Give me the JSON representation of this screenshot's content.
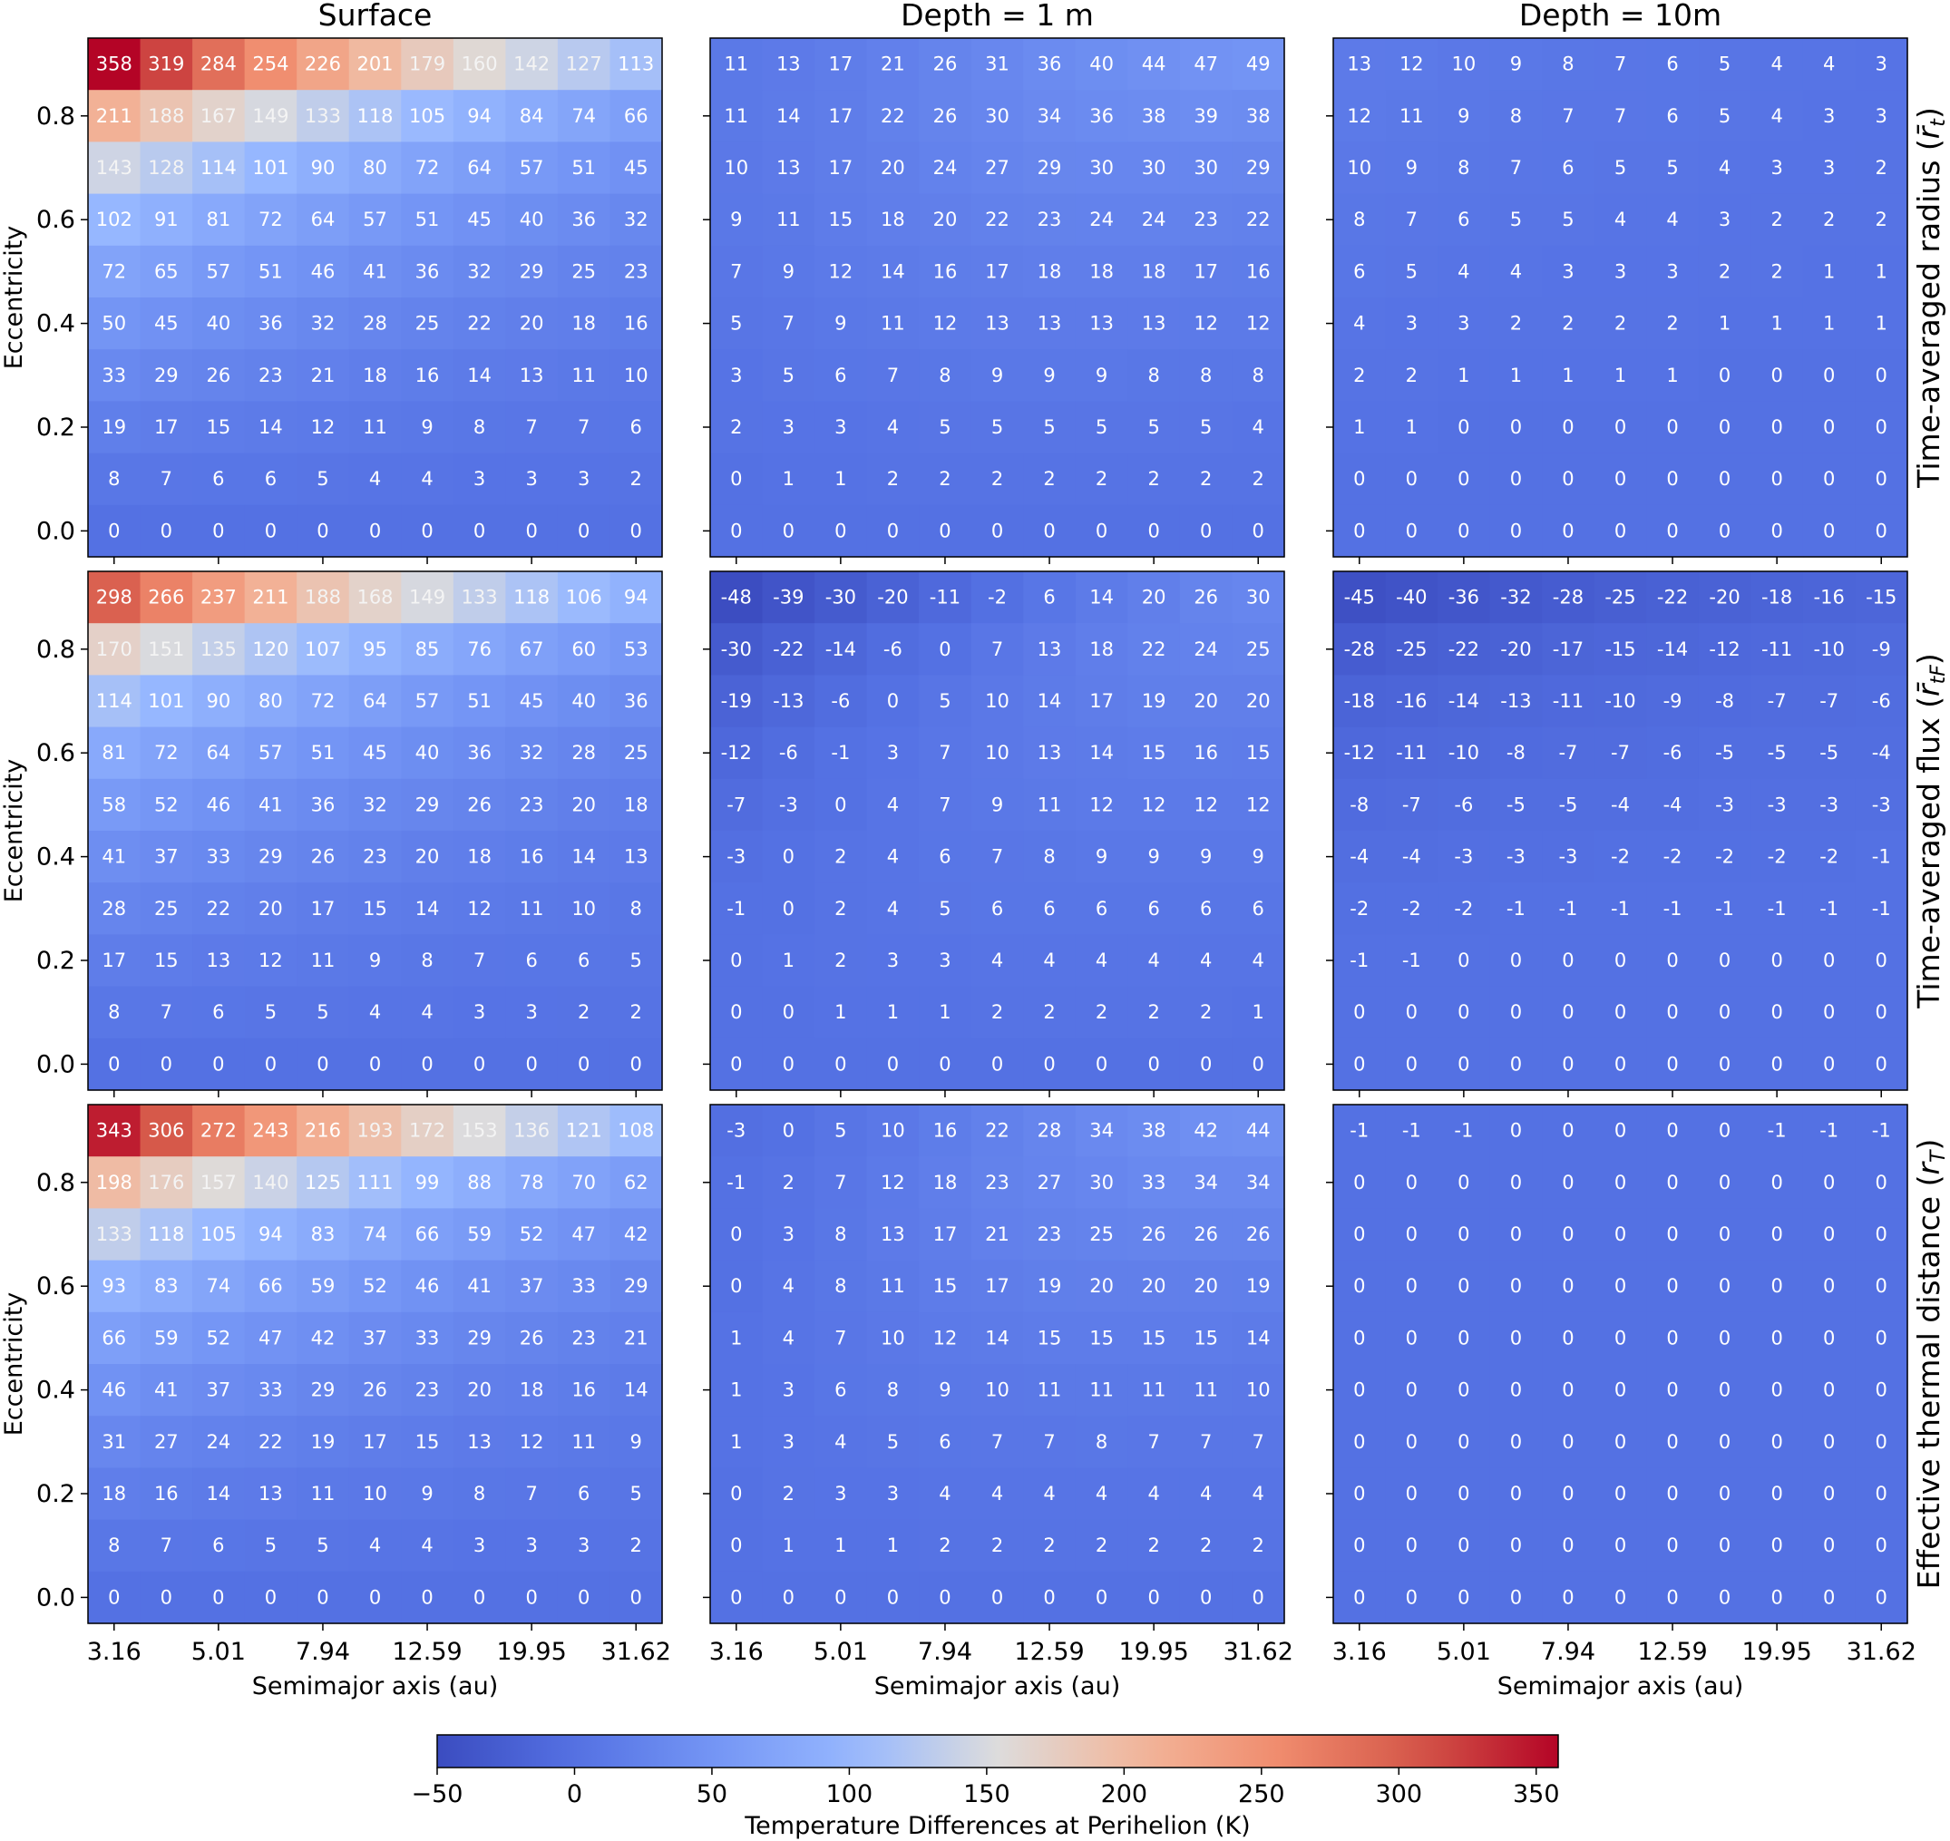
{
  "chart_data": {
    "type": "heatmap",
    "column_titles": [
      "Surface",
      "Depth = 1 m",
      "Depth = 10m"
    ],
    "row_labels": [
      {
        "text": "Time-averaged radius (",
        "sym": "r̄",
        "sub": "t",
        "close": ")"
      },
      {
        "text": "Time-averaged flux (",
        "sym": "r̄",
        "sub": "tF",
        "close": ")"
      },
      {
        "text": "Effective thermal distance (",
        "sym": "r",
        "sub": "T",
        "close": ")"
      }
    ],
    "xlabel": "Semimajor axis (au)",
    "ylabel": "Eccentricity",
    "x_tick_labels": [
      "3.16",
      "5.01",
      "7.94",
      "12.59",
      "19.95",
      "31.62"
    ],
    "y_tick_labels": [
      "0.0",
      "0.2",
      "0.4",
      "0.6",
      "0.8"
    ],
    "colorbar": {
      "label": "Temperature Differences at Perihelion (K)",
      "min": -50,
      "max": 358,
      "ticks": [
        "-50",
        "0",
        "50",
        "100",
        "150",
        "200",
        "250",
        "300",
        "350"
      ],
      "colormap": "coolwarm"
    },
    "panels": [
      [
        [
          [
            358,
            319,
            284,
            254,
            226,
            201,
            179,
            160,
            142,
            127,
            113
          ],
          [
            211,
            188,
            167,
            149,
            133,
            118,
            105,
            94,
            84,
            74,
            66
          ],
          [
            143,
            128,
            114,
            101,
            90,
            80,
            72,
            64,
            57,
            51,
            45
          ],
          [
            102,
            91,
            81,
            72,
            64,
            57,
            51,
            45,
            40,
            36,
            32
          ],
          [
            72,
            65,
            57,
            51,
            46,
            41,
            36,
            32,
            29,
            25,
            23
          ],
          [
            50,
            45,
            40,
            36,
            32,
            28,
            25,
            22,
            20,
            18,
            16
          ],
          [
            33,
            29,
            26,
            23,
            21,
            18,
            16,
            14,
            13,
            11,
            10
          ],
          [
            19,
            17,
            15,
            14,
            12,
            11,
            9,
            8,
            7,
            7,
            6
          ],
          [
            8,
            7,
            6,
            6,
            5,
            4,
            4,
            3,
            3,
            3,
            2
          ],
          [
            0,
            0,
            0,
            0,
            0,
            0,
            0,
            0,
            0,
            0,
            0
          ]
        ],
        [
          [
            11,
            13,
            17,
            21,
            26,
            31,
            36,
            40,
            44,
            47,
            49
          ],
          [
            11,
            14,
            17,
            22,
            26,
            30,
            34,
            36,
            38,
            39,
            38
          ],
          [
            10,
            13,
            17,
            20,
            24,
            27,
            29,
            30,
            30,
            30,
            29
          ],
          [
            9,
            11,
            15,
            18,
            20,
            22,
            23,
            24,
            24,
            23,
            22
          ],
          [
            7,
            9,
            12,
            14,
            16,
            17,
            18,
            18,
            18,
            17,
            16
          ],
          [
            5,
            7,
            9,
            11,
            12,
            13,
            13,
            13,
            13,
            12,
            12
          ],
          [
            3,
            5,
            6,
            7,
            8,
            9,
            9,
            9,
            8,
            8,
            8
          ],
          [
            2,
            3,
            3,
            4,
            5,
            5,
            5,
            5,
            5,
            5,
            4
          ],
          [
            0,
            1,
            1,
            2,
            2,
            2,
            2,
            2,
            2,
            2,
            2
          ],
          [
            0,
            0,
            0,
            0,
            0,
            0,
            0,
            0,
            0,
            0,
            0
          ]
        ],
        [
          [
            13,
            12,
            10,
            9,
            8,
            7,
            6,
            5,
            4,
            4,
            3
          ],
          [
            12,
            11,
            9,
            8,
            7,
            7,
            6,
            5,
            4,
            3,
            3
          ],
          [
            10,
            9,
            8,
            7,
            6,
            5,
            5,
            4,
            3,
            3,
            2
          ],
          [
            8,
            7,
            6,
            5,
            5,
            4,
            4,
            3,
            2,
            2,
            2
          ],
          [
            6,
            5,
            4,
            4,
            3,
            3,
            3,
            2,
            2,
            1,
            1
          ],
          [
            4,
            3,
            3,
            2,
            2,
            2,
            2,
            1,
            1,
            1,
            1
          ],
          [
            2,
            2,
            1,
            1,
            1,
            1,
            1,
            0,
            0,
            0,
            0
          ],
          [
            1,
            1,
            0,
            0,
            0,
            0,
            0,
            0,
            0,
            0,
            0
          ],
          [
            0,
            0,
            0,
            0,
            0,
            0,
            0,
            0,
            0,
            0,
            0
          ],
          [
            0,
            0,
            0,
            0,
            0,
            0,
            0,
            0,
            0,
            0,
            0
          ]
        ]
      ],
      [
        [
          [
            298,
            266,
            237,
            211,
            188,
            168,
            149,
            133,
            118,
            106,
            94
          ],
          [
            170,
            151,
            135,
            120,
            107,
            95,
            85,
            76,
            67,
            60,
            53
          ],
          [
            114,
            101,
            90,
            80,
            72,
            64,
            57,
            51,
            45,
            40,
            36
          ],
          [
            81,
            72,
            64,
            57,
            51,
            45,
            40,
            36,
            32,
            28,
            25
          ],
          [
            58,
            52,
            46,
            41,
            36,
            32,
            29,
            26,
            23,
            20,
            18
          ],
          [
            41,
            37,
            33,
            29,
            26,
            23,
            20,
            18,
            16,
            14,
            13
          ],
          [
            28,
            25,
            22,
            20,
            17,
            15,
            14,
            12,
            11,
            10,
            8
          ],
          [
            17,
            15,
            13,
            12,
            11,
            9,
            8,
            7,
            6,
            6,
            5
          ],
          [
            8,
            7,
            6,
            5,
            5,
            4,
            4,
            3,
            3,
            2,
            2
          ],
          [
            0,
            0,
            0,
            0,
            0,
            0,
            0,
            0,
            0,
            0,
            0
          ]
        ],
        [
          [
            -48,
            -39,
            -30,
            -20,
            -11,
            -2,
            6,
            14,
            20,
            26,
            30
          ],
          [
            -30,
            -22,
            -14,
            -6,
            0,
            7,
            13,
            18,
            22,
            24,
            25
          ],
          [
            -19,
            -13,
            -6,
            0,
            5,
            10,
            14,
            17,
            19,
            20,
            20
          ],
          [
            -12,
            -6,
            -1,
            3,
            7,
            10,
            13,
            14,
            15,
            16,
            15
          ],
          [
            -7,
            -3,
            0,
            4,
            7,
            9,
            11,
            12,
            12,
            12,
            12
          ],
          [
            -3,
            0,
            2,
            4,
            6,
            7,
            8,
            9,
            9,
            9,
            9
          ],
          [
            -1,
            0,
            2,
            4,
            5,
            6,
            6,
            6,
            6,
            6,
            6
          ],
          [
            0,
            1,
            2,
            3,
            3,
            4,
            4,
            4,
            4,
            4,
            4
          ],
          [
            0,
            0,
            1,
            1,
            1,
            2,
            2,
            2,
            2,
            2,
            1
          ],
          [
            0,
            0,
            0,
            0,
            0,
            0,
            0,
            0,
            0,
            0,
            0
          ]
        ],
        [
          [
            -45,
            -40,
            -36,
            -32,
            -28,
            -25,
            -22,
            -20,
            -18,
            -16,
            -15
          ],
          [
            -28,
            -25,
            -22,
            -20,
            -17,
            -15,
            -14,
            -12,
            -11,
            -10,
            -9
          ],
          [
            -18,
            -16,
            -14,
            -13,
            -11,
            -10,
            -9,
            -8,
            -7,
            -7,
            -6
          ],
          [
            -12,
            -11,
            -10,
            -8,
            -7,
            -7,
            -6,
            -5,
            -5,
            -5,
            -4
          ],
          [
            -8,
            -7,
            -6,
            -5,
            -5,
            -4,
            -4,
            -3,
            -3,
            -3,
            -3
          ],
          [
            -4,
            -4,
            -3,
            -3,
            -3,
            -2,
            -2,
            -2,
            -2,
            -2,
            -1
          ],
          [
            -2,
            -2,
            -2,
            -1,
            -1,
            -1,
            -1,
            -1,
            -1,
            -1,
            -1
          ],
          [
            -1,
            -1,
            0,
            0,
            0,
            0,
            0,
            0,
            0,
            0,
            0
          ],
          [
            0,
            0,
            0,
            0,
            0,
            0,
            0,
            0,
            0,
            0,
            0
          ],
          [
            0,
            0,
            0,
            0,
            0,
            0,
            0,
            0,
            0,
            0,
            0
          ]
        ]
      ],
      [
        [
          [
            343,
            306,
            272,
            243,
            216,
            193,
            172,
            153,
            136,
            121,
            108
          ],
          [
            198,
            176,
            157,
            140,
            125,
            111,
            99,
            88,
            78,
            70,
            62
          ],
          [
            133,
            118,
            105,
            94,
            83,
            74,
            66,
            59,
            52,
            47,
            42
          ],
          [
            93,
            83,
            74,
            66,
            59,
            52,
            46,
            41,
            37,
            33,
            29
          ],
          [
            66,
            59,
            52,
            47,
            42,
            37,
            33,
            29,
            26,
            23,
            21
          ],
          [
            46,
            41,
            37,
            33,
            29,
            26,
            23,
            20,
            18,
            16,
            14
          ],
          [
            31,
            27,
            24,
            22,
            19,
            17,
            15,
            13,
            12,
            11,
            9
          ],
          [
            18,
            16,
            14,
            13,
            11,
            10,
            9,
            8,
            7,
            6,
            5
          ],
          [
            8,
            7,
            6,
            5,
            5,
            4,
            4,
            3,
            3,
            3,
            2
          ],
          [
            0,
            0,
            0,
            0,
            0,
            0,
            0,
            0,
            0,
            0,
            0
          ]
        ],
        [
          [
            -3,
            0,
            5,
            10,
            16,
            22,
            28,
            34,
            38,
            42,
            44
          ],
          [
            -1,
            2,
            7,
            12,
            18,
            23,
            27,
            30,
            33,
            34,
            34
          ],
          [
            0,
            3,
            8,
            13,
            17,
            21,
            23,
            25,
            26,
            26,
            26
          ],
          [
            0,
            4,
            8,
            11,
            15,
            17,
            19,
            20,
            20,
            20,
            19
          ],
          [
            1,
            4,
            7,
            10,
            12,
            14,
            15,
            15,
            15,
            15,
            14
          ],
          [
            1,
            3,
            6,
            8,
            9,
            10,
            11,
            11,
            11,
            11,
            10
          ],
          [
            1,
            3,
            4,
            5,
            6,
            7,
            7,
            8,
            7,
            7,
            7
          ],
          [
            0,
            2,
            3,
            3,
            4,
            4,
            4,
            4,
            4,
            4,
            4
          ],
          [
            0,
            1,
            1,
            1,
            2,
            2,
            2,
            2,
            2,
            2,
            2
          ],
          [
            0,
            0,
            0,
            0,
            0,
            0,
            0,
            0,
            0,
            0,
            0
          ]
        ],
        [
          [
            -1,
            -1,
            -1,
            0,
            0,
            0,
            0,
            0,
            -1,
            -1,
            -1
          ],
          [
            0,
            0,
            0,
            0,
            0,
            0,
            0,
            0,
            0,
            0,
            0
          ],
          [
            0,
            0,
            0,
            0,
            0,
            0,
            0,
            0,
            0,
            0,
            0
          ],
          [
            0,
            0,
            0,
            0,
            0,
            0,
            0,
            0,
            0,
            0,
            0
          ],
          [
            0,
            0,
            0,
            0,
            0,
            0,
            0,
            0,
            0,
            0,
            0
          ],
          [
            0,
            0,
            0,
            0,
            0,
            0,
            0,
            0,
            0,
            0,
            0
          ],
          [
            0,
            0,
            0,
            0,
            0,
            0,
            0,
            0,
            0,
            0,
            0
          ],
          [
            0,
            0,
            0,
            0,
            0,
            0,
            0,
            0,
            0,
            0,
            0
          ],
          [
            0,
            0,
            0,
            0,
            0,
            0,
            0,
            0,
            0,
            0,
            0
          ],
          [
            0,
            0,
            0,
            0,
            0,
            0,
            0,
            0,
            0,
            0,
            0
          ]
        ]
      ]
    ]
  }
}
